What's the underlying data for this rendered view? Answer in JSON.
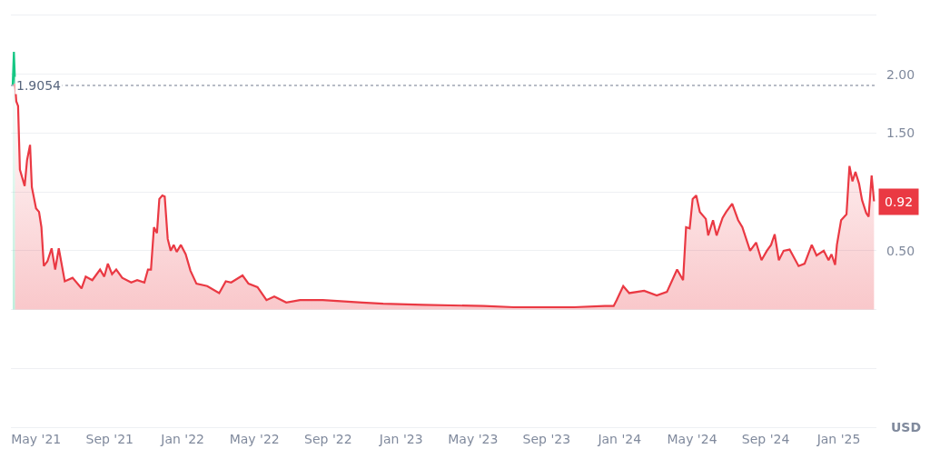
{
  "chart_data": {
    "type": "area",
    "series": [
      {
        "color": "#16c784",
        "x": [
          "2021-03-23",
          "2021-03-25",
          "2021-03-27"
        ],
        "values": [
          1.91,
          2.19,
          1.92
        ]
      },
      {
        "color": "#ea3943",
        "x": [
          "2021-03-27",
          "2021-03-29",
          "2021-04-01",
          "2021-04-04",
          "2021-04-12",
          "2021-04-16",
          "2021-04-21",
          "2021-04-24",
          "2021-05-01",
          "2021-05-06",
          "2021-05-10",
          "2021-05-14",
          "2021-05-20",
          "2021-05-27",
          "2021-06-02",
          "2021-06-08",
          "2021-06-18",
          "2021-07-01",
          "2021-07-16",
          "2021-07-23",
          "2021-08-03",
          "2021-08-16",
          "2021-08-23",
          "2021-08-29",
          "2021-09-05",
          "2021-09-12",
          "2021-09-22",
          "2021-10-07",
          "2021-10-17",
          "2021-10-29",
          "2021-11-04",
          "2021-11-09",
          "2021-11-14",
          "2021-11-19",
          "2021-11-23",
          "2021-11-28",
          "2021-12-02",
          "2021-12-07",
          "2021-12-12",
          "2021-12-17",
          "2021-12-22",
          "2021-12-29",
          "2022-01-06",
          "2022-01-14",
          "2022-01-24",
          "2022-02-11",
          "2022-03-03",
          "2022-03-14",
          "2022-03-23",
          "2022-04-11",
          "2022-04-21",
          "2022-05-06",
          "2022-05-21",
          "2022-06-03",
          "2022-06-23",
          "2022-07-16",
          "2022-08-03",
          "2022-08-23",
          "2022-10-28",
          "2022-12-02",
          "2023-02-06",
          "2023-05-19",
          "2023-07-08",
          "2023-10-17",
          "2023-12-07",
          "2023-12-22",
          "2023-12-27",
          "2024-01-07",
          "2024-01-17",
          "2024-02-11",
          "2024-03-03",
          "2024-03-20",
          "2024-04-06",
          "2024-04-16",
          "2024-04-21",
          "2024-04-27",
          "2024-05-02",
          "2024-05-08",
          "2024-05-14",
          "2024-05-24",
          "2024-05-28",
          "2024-06-05",
          "2024-06-11",
          "2024-06-21",
          "2024-06-27",
          "2024-07-07",
          "2024-07-17",
          "2024-07-24",
          "2024-08-06",
          "2024-08-16",
          "2024-08-25",
          "2024-09-03",
          "2024-09-10",
          "2024-09-16",
          "2024-09-23",
          "2024-10-01",
          "2024-10-11",
          "2024-10-26",
          "2024-11-05",
          "2024-11-17",
          "2024-11-25",
          "2024-12-07",
          "2024-12-15",
          "2024-12-20",
          "2024-12-26",
          "2024-12-29",
          "2025-01-05",
          "2025-01-14",
          "2025-01-19",
          "2025-01-24",
          "2025-01-29",
          "2025-02-04",
          "2025-02-09",
          "2025-02-16",
          "2025-02-20",
          "2025-02-25",
          "2025-03-01"
        ],
        "values": [
          1.92,
          1.77,
          1.73,
          1.19,
          1.05,
          1.27,
          1.4,
          1.04,
          0.86,
          0.83,
          0.7,
          0.37,
          0.41,
          0.52,
          0.34,
          0.52,
          0.24,
          0.27,
          0.18,
          0.28,
          0.25,
          0.34,
          0.28,
          0.39,
          0.3,
          0.34,
          0.27,
          0.23,
          0.25,
          0.23,
          0.34,
          0.34,
          0.7,
          0.65,
          0.94,
          0.97,
          0.96,
          0.6,
          0.5,
          0.55,
          0.49,
          0.55,
          0.47,
          0.33,
          0.22,
          0.2,
          0.14,
          0.24,
          0.23,
          0.29,
          0.22,
          0.19,
          0.08,
          0.11,
          0.06,
          0.08,
          0.08,
          0.08,
          0.06,
          0.05,
          0.04,
          0.03,
          0.02,
          0.02,
          0.03,
          0.03,
          0.08,
          0.2,
          0.14,
          0.16,
          0.12,
          0.15,
          0.34,
          0.25,
          0.7,
          0.69,
          0.94,
          0.97,
          0.83,
          0.77,
          0.63,
          0.76,
          0.63,
          0.78,
          0.83,
          0.9,
          0.76,
          0.7,
          0.5,
          0.57,
          0.42,
          0.5,
          0.55,
          0.64,
          0.42,
          0.5,
          0.51,
          0.37,
          0.39,
          0.55,
          0.46,
          0.5,
          0.42,
          0.47,
          0.38,
          0.55,
          0.76,
          0.81,
          1.22,
          1.09,
          1.17,
          1.07,
          0.93,
          0.82,
          0.79,
          1.14,
          0.92
        ]
      }
    ],
    "xlim": [
      "2021-03-20",
      "2025-03-05"
    ],
    "xticks": [
      {
        "value": "2021-05-01",
        "label": "May '21"
      },
      {
        "value": "2021-09-01",
        "label": "Sep '21"
      },
      {
        "value": "2022-01-01",
        "label": "Jan '22"
      },
      {
        "value": "2022-05-01",
        "label": "May '22"
      },
      {
        "value": "2022-09-01",
        "label": "Sep '22"
      },
      {
        "value": "2023-01-01",
        "label": "Jan '23"
      },
      {
        "value": "2023-05-01",
        "label": "May '23"
      },
      {
        "value": "2023-09-01",
        "label": "Sep '23"
      },
      {
        "value": "2024-01-01",
        "label": "Jan '24"
      },
      {
        "value": "2024-05-01",
        "label": "May '24"
      },
      {
        "value": "2024-09-01",
        "label": "Sep '24"
      },
      {
        "value": "2025-01-01",
        "label": "Jan '25"
      }
    ],
    "ylim": [
      -1.0,
      2.5
    ],
    "yticks": [
      {
        "value": -0.5,
        "label": null
      },
      {
        "value": 0,
        "label": null
      },
      {
        "value": 0.5,
        "label": "0.50"
      },
      {
        "value": 1.0,
        "label": null
      },
      {
        "value": 1.5,
        "label": "1.50"
      },
      {
        "value": 2.0,
        "label": "2.00"
      }
    ],
    "ylabel": "USD",
    "ref_lines": [
      {
        "axis": "y",
        "value": 1.9054,
        "label": "1.9054",
        "color": "#a0a7b4",
        "line_style": "dotted"
      }
    ],
    "annotations": [
      {
        "text": "0.92",
        "y": 0.92
      }
    ],
    "grid": "y",
    "marker": "none",
    "line_style": "solid"
  }
}
